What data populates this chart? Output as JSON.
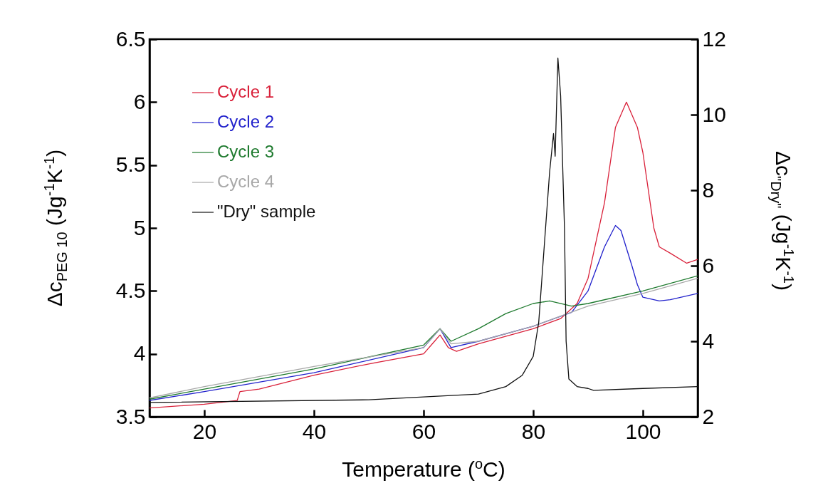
{
  "chart_data": {
    "type": "line",
    "xlabel": "Temperature ($^{o}$C)",
    "ylabel": "Δc$_{PEG 10}$ (Jg$^{-1}$K$^{-1}$)",
    "y2label": "Δc$_{\"Dry\"}$ (Jg$^{-1}$K$^{-1}$)",
    "xlim": [
      10,
      110
    ],
    "xticks": [
      20,
      40,
      60,
      80,
      100
    ],
    "ylim": [
      3.5,
      6.5
    ],
    "yticks": [
      3.5,
      4,
      4.5,
      5,
      5.5,
      6,
      6.5
    ],
    "y2lim": [
      2,
      12
    ],
    "y2ticks": [
      2,
      4,
      6,
      8,
      10,
      12
    ],
    "legend": "top left",
    "series": [
      {
        "name": "Cycle 1",
        "color": "#d9213a",
        "x": [
          10,
          20,
          26,
          26.5,
          30,
          40,
          50,
          60,
          62,
          63,
          64.5,
          66,
          70,
          80,
          85,
          88,
          90,
          93,
          95,
          97,
          99,
          100,
          102,
          103,
          105,
          108,
          110
        ],
        "values": [
          3.57,
          3.6,
          3.63,
          3.7,
          3.72,
          3.83,
          3.92,
          4.0,
          4.1,
          4.15,
          4.05,
          4.02,
          4.08,
          4.2,
          4.28,
          4.4,
          4.6,
          5.2,
          5.8,
          6.0,
          5.8,
          5.6,
          5.0,
          4.85,
          4.8,
          4.72,
          4.75
        ]
      },
      {
        "name": "Cycle 2",
        "color": "#2222cc",
        "x": [
          10,
          20,
          40,
          60,
          63,
          65,
          70,
          80,
          87,
          90,
          93,
          95,
          96,
          98,
          99,
          100,
          103,
          105,
          110
        ],
        "values": [
          3.63,
          3.7,
          3.85,
          4.05,
          4.2,
          4.05,
          4.1,
          4.22,
          4.33,
          4.5,
          4.85,
          5.02,
          4.98,
          4.7,
          4.55,
          4.45,
          4.42,
          4.43,
          4.48
        ]
      },
      {
        "name": "Cycle 3",
        "color": "#1e7a2e",
        "x": [
          10,
          20,
          40,
          60,
          63,
          65,
          70,
          75,
          80,
          83,
          87,
          90,
          100,
          110
        ],
        "values": [
          3.64,
          3.72,
          3.88,
          4.07,
          4.2,
          4.1,
          4.2,
          4.32,
          4.4,
          4.42,
          4.38,
          4.4,
          4.5,
          4.62
        ]
      },
      {
        "name": "Cycle 4",
        "color": "#a8a8a8",
        "x": [
          10,
          20,
          40,
          60,
          63,
          65,
          70,
          80,
          90,
          100,
          110
        ],
        "values": [
          3.65,
          3.74,
          3.9,
          4.05,
          4.2,
          4.08,
          4.1,
          4.22,
          4.38,
          4.48,
          4.6
        ]
      },
      {
        "name": "\"Dry\" sample",
        "color": "#111111",
        "axis": "y2",
        "x": [
          10,
          50,
          70,
          75,
          78,
          80,
          81,
          82,
          83,
          83.7,
          84,
          84.5,
          85,
          85.7,
          86,
          86.5,
          88,
          90,
          91,
          100,
          110
        ],
        "values": [
          2.38,
          2.45,
          2.6,
          2.8,
          3.1,
          3.6,
          4.5,
          6.5,
          8.5,
          9.5,
          8.9,
          11.5,
          10.5,
          7,
          4,
          3,
          2.8,
          2.75,
          2.7,
          2.75,
          2.8
        ]
      }
    ]
  }
}
